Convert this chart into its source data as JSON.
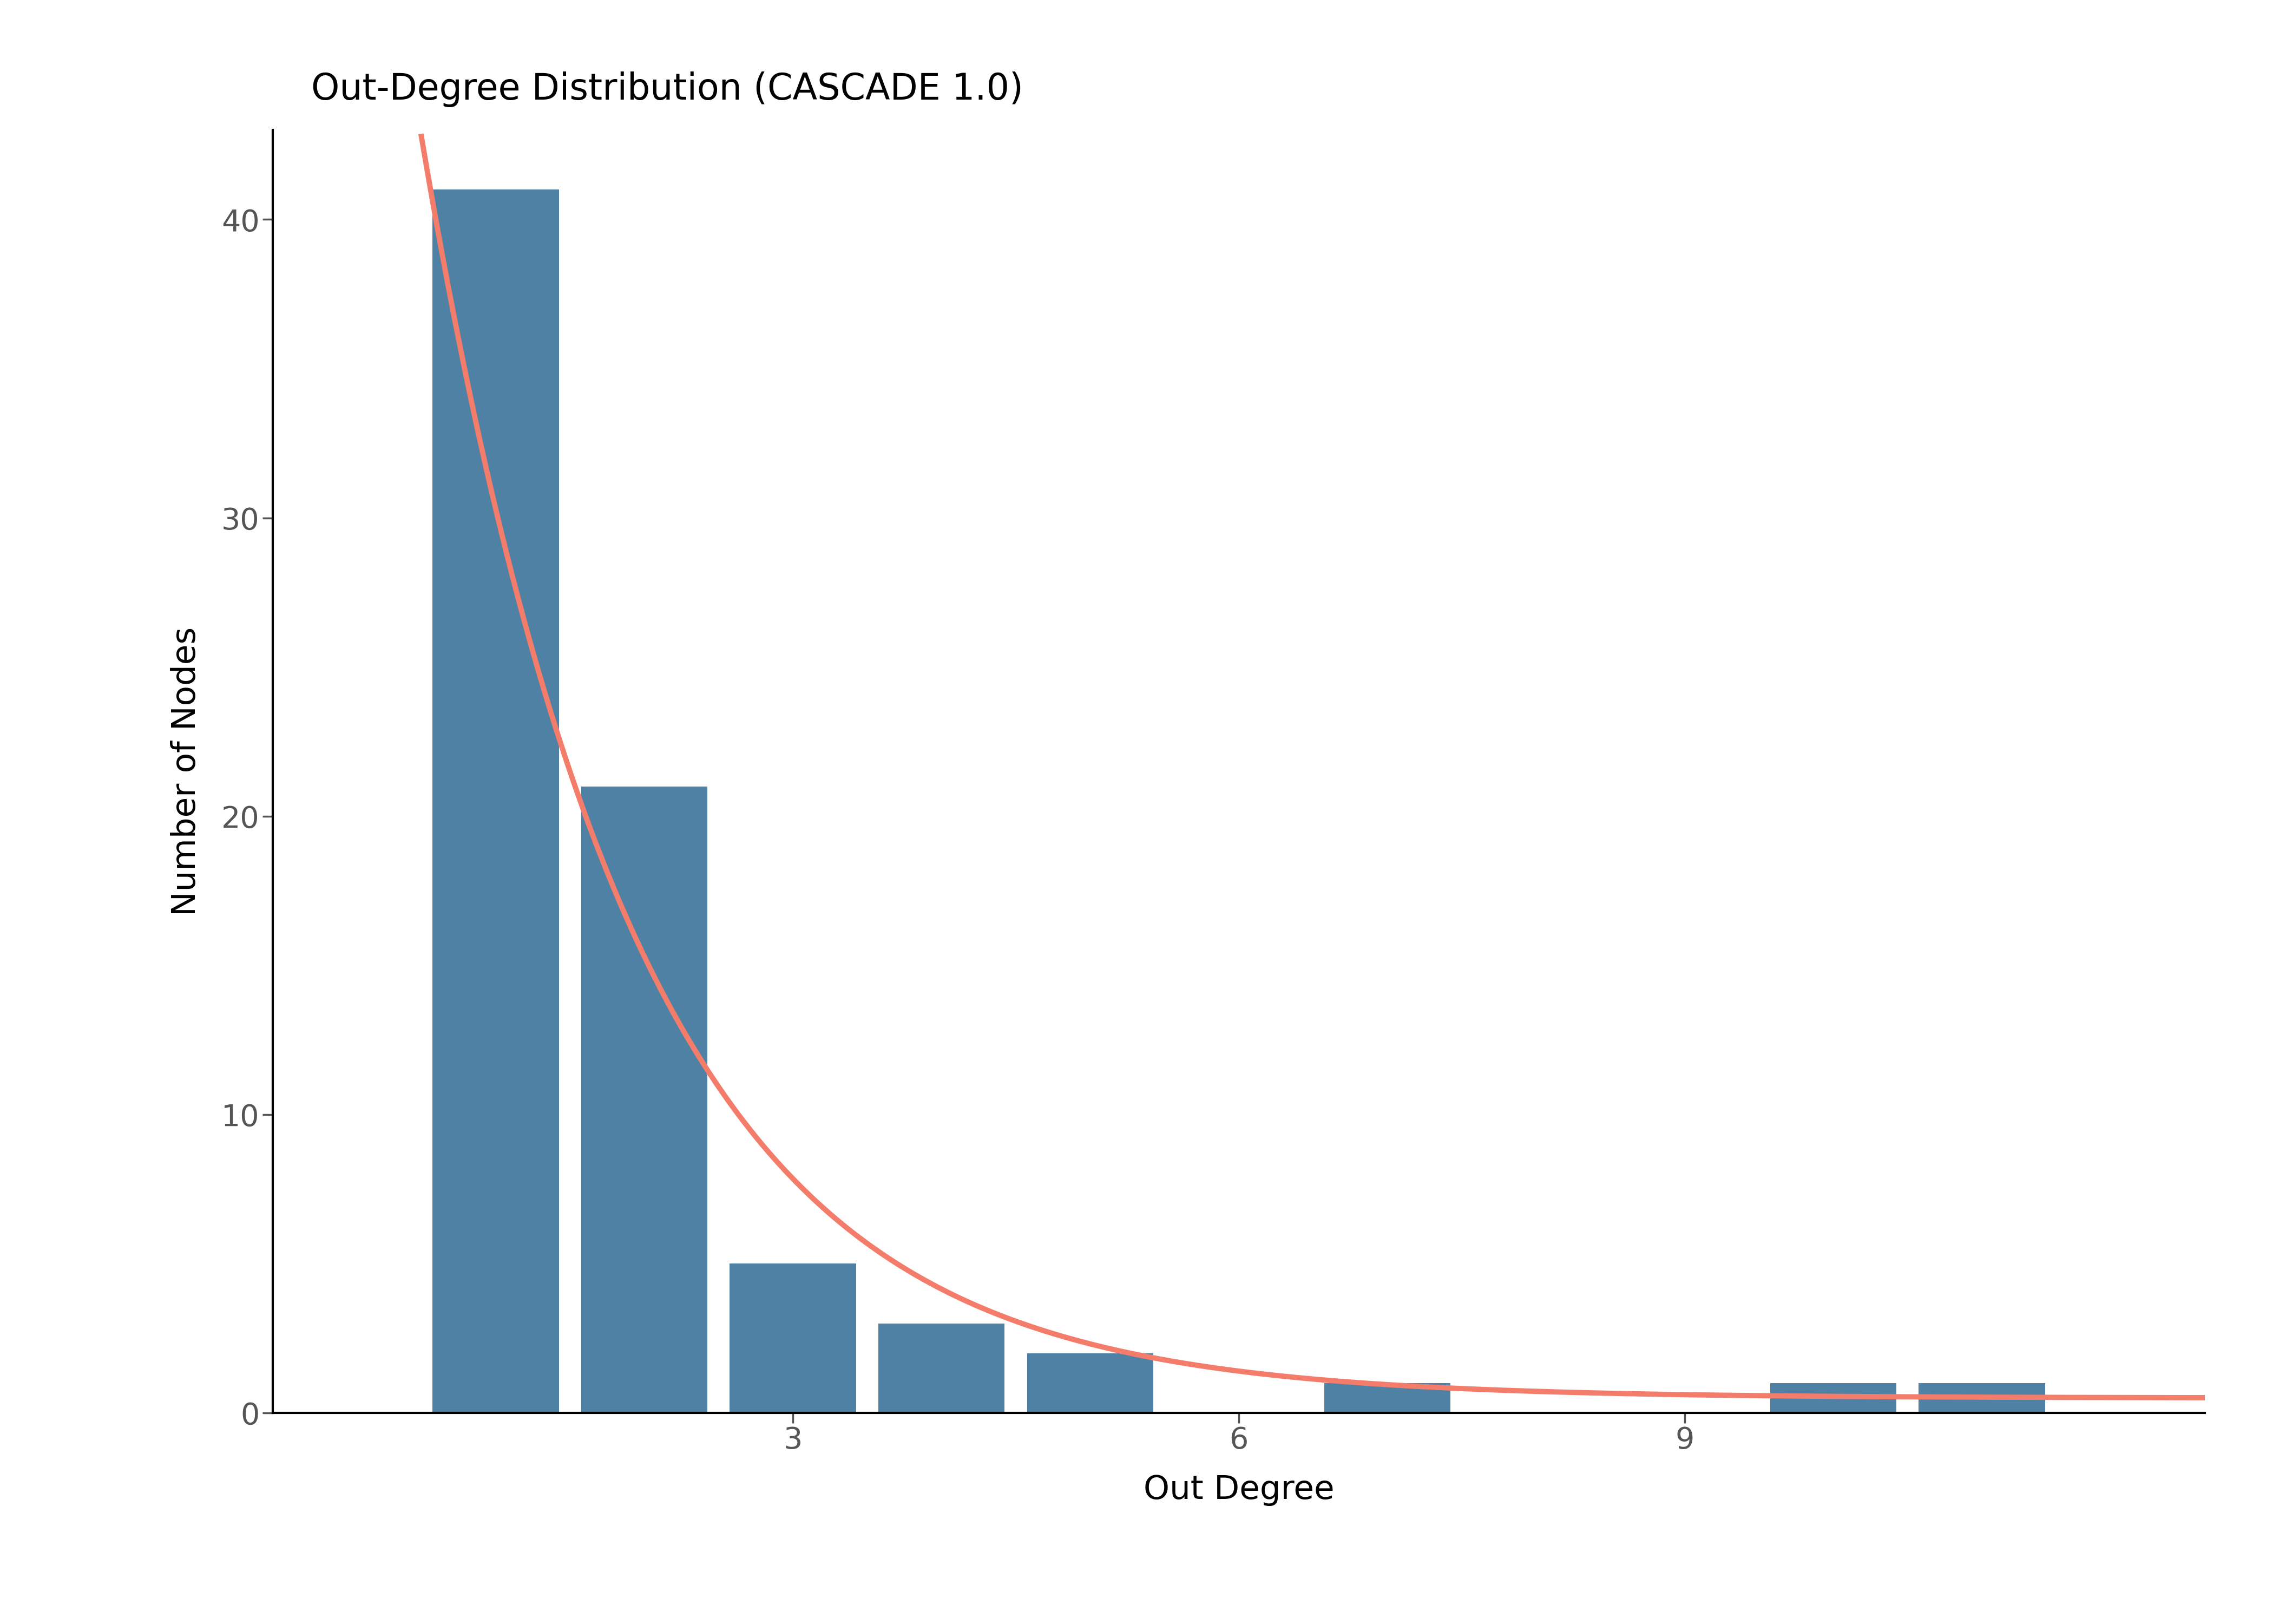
{
  "title": "Out-Degree Distribution (CASCADE 1.0)",
  "xlabel": "Out Degree",
  "ylabel": "Number of Nodes",
  "bar_color": "#4f81a4",
  "curve_color": "#f47c6a",
  "background_color": "#ffffff",
  "bar_data": [
    {
      "degree": 1,
      "count": 41
    },
    {
      "degree": 2,
      "count": 21
    },
    {
      "degree": 3,
      "count": 5
    },
    {
      "degree": 4,
      "count": 3
    },
    {
      "degree": 5,
      "count": 2
    },
    {
      "degree": 7,
      "count": 1
    },
    {
      "degree": 10,
      "count": 1
    },
    {
      "degree": 11,
      "count": 1
    }
  ],
  "xlim": [
    -0.5,
    12.5
  ],
  "ylim": [
    0,
    43
  ],
  "xticks": [
    3,
    6,
    9
  ],
  "yticks": [
    0,
    10,
    20,
    30,
    40
  ],
  "title_fontsize": 48,
  "label_fontsize": 44,
  "tick_fontsize": 40,
  "curve_linewidth": 7,
  "bar_width": 0.85
}
